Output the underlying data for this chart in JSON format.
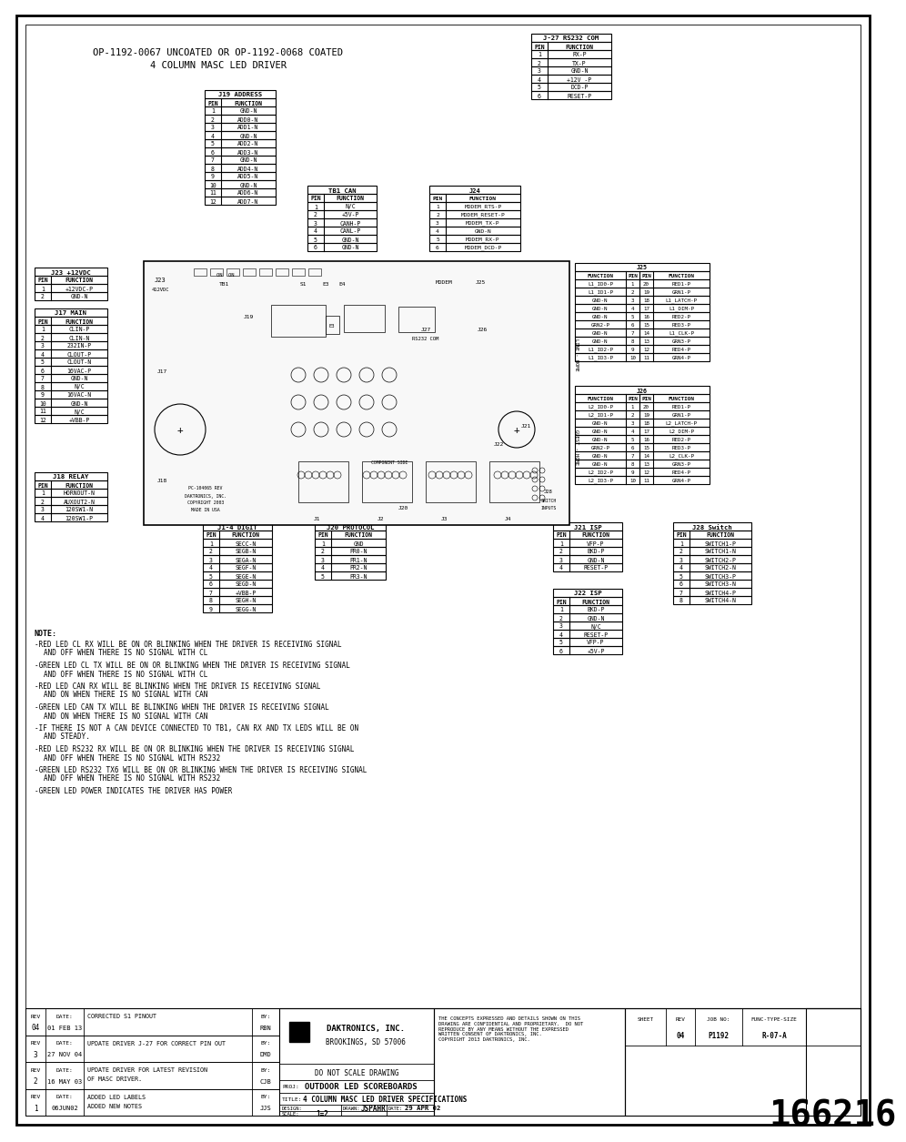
{
  "bg_color": "#ffffff",
  "text_color": "#000000",
  "title_line1": "OP-1192-0067 UNCOATED OR OP-1192-0068 COATED",
  "title_line2": "4 COLUMN MASC LED DRIVER",
  "company": "DAKTRONICS, INC.",
  "company_city": "BROOKINGS, SD 57006",
  "do_not_scale": "DO NOT SCALE DRAWING",
  "proj_label": "PROJ:",
  "proj_value": "OUTDOOR LED SCOREBOARDS",
  "title_label": "TITLE:",
  "title_value": "4 COLUMN MASC LED DRIVER SPECIFICATIONS",
  "design_label": "DESIGN:",
  "drawn_label": "DRAWN:",
  "drawn_value": "JSPAHR",
  "date_label": "DATE:",
  "date_value": "29 APR 02",
  "scale_label": "SCALE:",
  "scale_value": "1=2",
  "sheet_label": "SHEET",
  "rev_label": "REV",
  "job_label": "JOB NO:",
  "func_label": "FUNC-TYPE-SIZE",
  "job_value": "P1192",
  "func_value": "R-07-A",
  "rev_current": "04",
  "drawing_number": "166216",
  "copyright_text": "THE CONCEPTS EXPRESSED AND DETAILS SHOWN ON THIS\nDRAWING ARE CONFIDENTIAL AND PROPRIETARY.  DO NOT\nREPRODUCE BY ANY MEANS WITHOUT THE EXPRESSED\nWRITTEN CONSENT OF DAKTRONICS, INC.\nCOPYRIGHT 2013 DAKTRONICS, INC.",
  "note_header": "NOTE:",
  "notes": [
    "-RED LED CL RX WILL BE ON OR BLINKING WHEN THE DRIVER IS RECEIVING SIGNAL",
    "AND OFF WHEN THERE IS NO SIGNAL WITH CL",
    "",
    "-GREEN LED CL TX WILL BE ON OR BLINKING WHEN THE DRIVER IS RECEIVING SIGNAL",
    "AND OFF WHEN THERE IS NO SIGNAL WITH CL",
    "",
    "-RED LED CAN RX WILL BE BLINKING WHEN THE DRIVER IS RECEIVING SIGNAL",
    "AND ON WHEN THERE IS NO SIGNAL WITH CAN",
    "",
    "-GREEN LED CAN TX WILL BE BLINKING WHEN THE DRIVER IS RECEIVING SIGNAL",
    "AND ON WHEN THERE IS NO SIGNAL WITH CAN",
    "",
    "-IF THERE IS NOT A CAN DEVICE CONNECTED TO TB1, CAN RX AND TX LEDS WILL BE ON",
    "AND STEADY.",
    "",
    "-RED LED RS232 RX WILL BE ON OR BLINKING WHEN THE DRIVER IS RECEIVING SIGNAL",
    "AND OFF WHEN THERE IS NO SIGNAL WITH RS232",
    "",
    "-GREEN LED RS232 TX6 WILL BE ON OR BLINKING WHEN THE DRIVER IS RECEIVING SIGNAL",
    "AND OFF WHEN THERE IS NO SIGNAL WITH RS232",
    "",
    "-GREEN LED POWER INDICATES THE DRIVER HAS POWER"
  ],
  "rev_history": [
    {
      "rev": "04",
      "date": "01 FEB 13",
      "desc": "CORRECTED S1 PINOUT",
      "by": "RBN"
    },
    {
      "rev": "3",
      "date": "27 NOV 04",
      "desc": "UPDATE DRIVER J-27 FOR CORRECT PIN OUT",
      "by": "DMD"
    },
    {
      "rev": "2",
      "date": "16 MAY 03",
      "desc": "UPDATE DRIVER FOR LATEST REVISION\nOF MASC DRIVER.",
      "by": "CJB"
    },
    {
      "rev": "1",
      "date": "06JUN02",
      "desc": "ADDED LED LABELS\nADDED NEW NOTES",
      "by": "JJS"
    }
  ],
  "j19_title": "J19 ADDRESS",
  "j19_pins": [
    [
      "1",
      "GND-N"
    ],
    [
      "2",
      "ADD0-N"
    ],
    [
      "3",
      "ADD1-N"
    ],
    [
      "4",
      "GND-N"
    ],
    [
      "5",
      "ADD2-N"
    ],
    [
      "6",
      "ADD3-N"
    ],
    [
      "7",
      "GND-N"
    ],
    [
      "8",
      "ADD4-N"
    ],
    [
      "9",
      "ADD5-N"
    ],
    [
      "10",
      "GND-N"
    ],
    [
      "11",
      "ADD6-N"
    ],
    [
      "12",
      "ADD7-N"
    ]
  ],
  "j27_title": "J-27 RS232 COM",
  "j27_pins": [
    [
      "1",
      "RX-P"
    ],
    [
      "2",
      "TX-P"
    ],
    [
      "3",
      "GND-N"
    ],
    [
      "4",
      "+12V -P"
    ],
    [
      "5",
      "DCD-P"
    ],
    [
      "6",
      "RESET-P"
    ]
  ],
  "tb1_title": "TB1 CAN",
  "tb1_pins": [
    [
      "1",
      "N/C"
    ],
    [
      "2",
      "+5V-P"
    ],
    [
      "3",
      "CANH-P"
    ],
    [
      "4",
      "CANL-P"
    ],
    [
      "5",
      "GND-N"
    ],
    [
      "6",
      "GND-N"
    ]
  ],
  "j24_title": "J24",
  "j24_pins": [
    [
      "1",
      "MODEM_RTS-P"
    ],
    [
      "2",
      "MODEM_RESET-P"
    ],
    [
      "3",
      "MODEM_TX-P"
    ],
    [
      "4",
      "GND-N"
    ],
    [
      "5",
      "MODEM_RX-P"
    ],
    [
      "6",
      "MODEM_DCD-P"
    ]
  ],
  "j23_title": "J23 +12VDC",
  "j23_pins": [
    [
      "1",
      "+12VDC-P"
    ],
    [
      "2",
      "GND-N"
    ]
  ],
  "j17_title": "J17 MAIN",
  "j17_pins": [
    [
      "1",
      "CLIN-P"
    ],
    [
      "2",
      "CLIN-N"
    ],
    [
      "3",
      "232IN-P"
    ],
    [
      "4",
      "CLOUT-P"
    ],
    [
      "5",
      "CLOUT-N"
    ],
    [
      "6",
      "16VAC-P"
    ],
    [
      "7",
      "GND-N"
    ],
    [
      "8",
      "N/C"
    ],
    [
      "9",
      "16VAC-N"
    ],
    [
      "10",
      "GND-N"
    ],
    [
      "11",
      "N/C"
    ],
    [
      "12",
      "+VBB-P"
    ]
  ],
  "j18_title": "J18 RELAY",
  "j18_pins": [
    [
      "1",
      "HORNOUT-N"
    ],
    [
      "2",
      "AUXOUT2-N"
    ],
    [
      "3",
      "120SW1-N"
    ],
    [
      "4",
      "120SW1-P"
    ]
  ],
  "j25_title": "J25",
  "j25_rows": [
    [
      "L1_ID0-P",
      "1",
      "20",
      "RED1-P"
    ],
    [
      "L1_ID1-P",
      "2",
      "19",
      "GRN1-P"
    ],
    [
      "GND-N",
      "3",
      "18",
      "L1_LATCH-P"
    ],
    [
      "GND-N",
      "4",
      "17",
      "L1_DIM-P"
    ],
    [
      "GND-N",
      "5",
      "16",
      "RED2-P"
    ],
    [
      "GRN2-P",
      "6",
      "15",
      "RED3-P"
    ],
    [
      "GND-N",
      "7",
      "14",
      "L1_CLK-P"
    ],
    [
      "GND-N",
      "8",
      "13",
      "GRN3-P"
    ],
    [
      "L1_ID2-P",
      "9",
      "12",
      "RED4-P"
    ],
    [
      "L1_ID3-P",
      "10",
      "11",
      "GRN4-P"
    ]
  ],
  "j26_title": "J26",
  "j26_rows": [
    [
      "L2_ID0-P",
      "1",
      "20",
      "RED1-P"
    ],
    [
      "L2_ID1-P",
      "2",
      "19",
      "GRN1-P"
    ],
    [
      "GND-N",
      "3",
      "18",
      "L2_LATCH-P"
    ],
    [
      "GND-N",
      "4",
      "17",
      "L2_DIM-P"
    ],
    [
      "GND-N",
      "5",
      "16",
      "RED2-P"
    ],
    [
      "GRN2-P",
      "6",
      "15",
      "RED3-P"
    ],
    [
      "GND-N",
      "7",
      "14",
      "L2_CLK-P"
    ],
    [
      "GND-N",
      "8",
      "13",
      "GRN3-P"
    ],
    [
      "L2_ID2-P",
      "9",
      "12",
      "RED4-P"
    ],
    [
      "L2_ID3-P",
      "10",
      "11",
      "GRN4-P"
    ]
  ],
  "j14_title": "J1-4 DIGIT",
  "j14_pins": [
    [
      "1",
      "SECC-N"
    ],
    [
      "2",
      "SEGB-N"
    ],
    [
      "3",
      "SEGA-N"
    ],
    [
      "4",
      "SEGF-N"
    ],
    [
      "5",
      "SEGE-N"
    ],
    [
      "6",
      "SEGD-N"
    ],
    [
      "7",
      "+VBB-P"
    ],
    [
      "8",
      "SEGH-N"
    ],
    [
      "9",
      "SEGG-N"
    ]
  ],
  "j20_title": "J20 PROTOCOL",
  "j20_pins": [
    [
      "1",
      "GND"
    ],
    [
      "2",
      "PR0-N"
    ],
    [
      "3",
      "PR1-N"
    ],
    [
      "4",
      "PR2-N"
    ],
    [
      "5",
      "PR3-N"
    ]
  ],
  "j21_title": "J21 ISP",
  "j21_pins": [
    [
      "1",
      "VFP-P"
    ],
    [
      "2",
      "BKD-P"
    ],
    [
      "3",
      "GND-N"
    ],
    [
      "4",
      "RESET-P"
    ]
  ],
  "j22_title": "J22 ISP",
  "j22_pins": [
    [
      "1",
      "BKD-P"
    ],
    [
      "2",
      "GND-N"
    ],
    [
      "3",
      "N/C"
    ],
    [
      "4",
      "RESET-P"
    ],
    [
      "5",
      "VFP-P"
    ],
    [
      "6",
      "+5V-P"
    ]
  ],
  "j28_title": "J28 Switch",
  "j28_pins": [
    [
      "1",
      "SWITCH1-P"
    ],
    [
      "2",
      "SWITCH1-N"
    ],
    [
      "3",
      "SWITCH2-P"
    ],
    [
      "4",
      "SWITCH2-N"
    ],
    [
      "5",
      "SWITCH3-P"
    ],
    [
      "6",
      "SWITCH3-N"
    ],
    [
      "7",
      "SWITCH4-P"
    ],
    [
      "8",
      "SWITCH4-N"
    ]
  ]
}
